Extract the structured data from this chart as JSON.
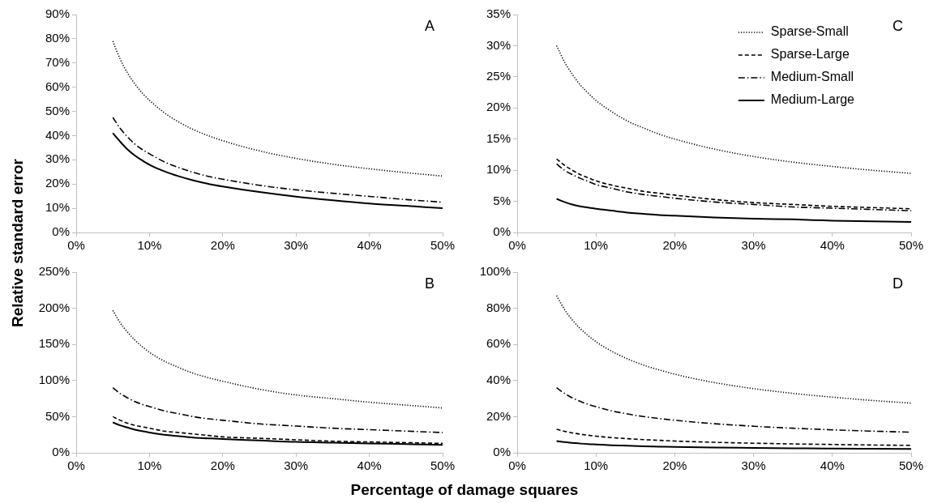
{
  "chart_data": [
    {
      "type": "line",
      "title": "A",
      "xlabel": "Percentage of damage squares",
      "ylabel": "Relative standard error",
      "x": [
        5,
        6,
        7,
        8,
        9,
        10,
        12,
        14,
        16,
        18,
        20,
        25,
        30,
        35,
        40,
        45,
        50
      ],
      "xlim": [
        0,
        50
      ],
      "xticks": [
        {
          "value": 0,
          "label": "0%"
        },
        {
          "value": 10,
          "label": "10%"
        },
        {
          "value": 20,
          "label": "20%"
        },
        {
          "value": 30,
          "label": "30%"
        },
        {
          "value": 40,
          "label": "40%"
        },
        {
          "value": 50,
          "label": "50%"
        }
      ],
      "ylim": [
        0,
        90
      ],
      "yticks": [
        {
          "value": 0,
          "label": "0%"
        },
        {
          "value": 10,
          "label": "10%"
        },
        {
          "value": 20,
          "label": "20%"
        },
        {
          "value": 30,
          "label": "30%"
        },
        {
          "value": 40,
          "label": "40%"
        },
        {
          "value": 50,
          "label": "50%"
        },
        {
          "value": 60,
          "label": "60%"
        },
        {
          "value": 70,
          "label": "70%"
        },
        {
          "value": 80,
          "label": "80%"
        },
        {
          "value": 90,
          "label": "90%"
        }
      ],
      "grid": false,
      "legend": false,
      "marker": "none",
      "series": [
        {
          "color": "#000000",
          "line_style": "dotted",
          "values": [
            79,
            71.6,
            65.9,
            61.4,
            57.6,
            54.6,
            49.5,
            45.6,
            42.5,
            40,
            37.9,
            33.7,
            30.6,
            28.2,
            26.3,
            24.7,
            23.3
          ]
        },
        {
          "color": "#000000",
          "line_style": "dashdot",
          "values": [
            47.5,
            43,
            39.5,
            36.5,
            34.3,
            32.5,
            29.2,
            26.8,
            24.8,
            23.2,
            22,
            19.5,
            17.6,
            16.2,
            14.9,
            13.6,
            12.5
          ]
        },
        {
          "color": "#000000",
          "line_style": "solid",
          "values": [
            41,
            37.5,
            34.3,
            31.8,
            29.8,
            28,
            25.3,
            23.2,
            21.5,
            20.1,
            19,
            16.7,
            14.8,
            13.3,
            12,
            11,
            10
          ]
        }
      ]
    },
    {
      "type": "line",
      "title": "C",
      "x": [
        5,
        6,
        7,
        8,
        9,
        10,
        12,
        14,
        16,
        18,
        20,
        25,
        30,
        35,
        40,
        45,
        50
      ],
      "xlim": [
        0,
        50
      ],
      "xticks": [
        {
          "value": 0,
          "label": "0%"
        },
        {
          "value": 10,
          "label": "10%"
        },
        {
          "value": 20,
          "label": "20%"
        },
        {
          "value": 30,
          "label": "30%"
        },
        {
          "value": 40,
          "label": "40%"
        },
        {
          "value": 50,
          "label": "50%"
        }
      ],
      "ylim": [
        0,
        35
      ],
      "yticks": [
        {
          "value": 0,
          "label": "0%"
        },
        {
          "value": 5,
          "label": "5%"
        },
        {
          "value": 10,
          "label": "10%"
        },
        {
          "value": 15,
          "label": "15%"
        },
        {
          "value": 20,
          "label": "20%"
        },
        {
          "value": 25,
          "label": "25%"
        },
        {
          "value": 30,
          "label": "30%"
        },
        {
          "value": 35,
          "label": "35%"
        }
      ],
      "grid": false,
      "legend": "top right",
      "marker": "none",
      "series": [
        {
          "name": "Sparse-Small",
          "color": "#000000",
          "line_style": "dotted",
          "values": [
            30,
            27.4,
            25.4,
            23.7,
            22.4,
            21.2,
            19.4,
            17.9,
            16.8,
            15.8,
            15,
            13.4,
            12.2,
            11.3,
            10.6,
            10,
            9.5
          ]
        },
        {
          "name": "Sparse-Large",
          "color": "#000000",
          "line_style": "dashed",
          "values": [
            11.8,
            10.8,
            10,
            9.3,
            8.8,
            8.3,
            7.6,
            7.1,
            6.6,
            6.3,
            6,
            5.3,
            4.8,
            4.5,
            4.2,
            4,
            3.8
          ]
        },
        {
          "name": "Medium-Small",
          "color": "#000000",
          "line_style": "dashdot",
          "values": [
            11,
            10,
            9.3,
            8.7,
            8.2,
            7.7,
            7.1,
            6.5,
            6.1,
            5.8,
            5.5,
            4.9,
            4.5,
            4.1,
            3.9,
            3.7,
            3.5
          ]
        },
        {
          "name": "Medium-Large",
          "color": "#000000",
          "line_style": "solid",
          "values": [
            5.4,
            4.9,
            4.5,
            4.2,
            4,
            3.8,
            3.5,
            3.2,
            3,
            2.8,
            2.7,
            2.4,
            2.2,
            2.1,
            1.9,
            1.8,
            1.7
          ]
        }
      ]
    },
    {
      "type": "line",
      "title": "B",
      "x": [
        5,
        6,
        7,
        8,
        9,
        10,
        12,
        14,
        16,
        18,
        20,
        25,
        30,
        35,
        40,
        45,
        50
      ],
      "xlim": [
        0,
        50
      ],
      "xticks": [
        {
          "value": 0,
          "label": "0%"
        },
        {
          "value": 10,
          "label": "10%"
        },
        {
          "value": 20,
          "label": "20%"
        },
        {
          "value": 30,
          "label": "30%"
        },
        {
          "value": 40,
          "label": "40%"
        },
        {
          "value": 50,
          "label": "50%"
        }
      ],
      "ylim": [
        0,
        250
      ],
      "yticks": [
        {
          "value": 0,
          "label": "0%"
        },
        {
          "value": 50,
          "label": "50%"
        },
        {
          "value": 100,
          "label": "100%"
        },
        {
          "value": 150,
          "label": "150%"
        },
        {
          "value": 200,
          "label": "200%"
        },
        {
          "value": 250,
          "label": "250%"
        }
      ],
      "grid": false,
      "legend": false,
      "marker": "none",
      "series": [
        {
          "color": "#000000",
          "line_style": "dotted",
          "values": [
            197,
            180,
            167,
            156,
            147,
            139,
            127,
            118,
            110,
            104,
            99,
            88,
            80,
            75,
            70,
            66,
            62
          ]
        },
        {
          "color": "#000000",
          "line_style": "dashed",
          "values": [
            50,
            45,
            41,
            38,
            36,
            34,
            30,
            28,
            26,
            24,
            22,
            20,
            18,
            16,
            15,
            14,
            13
          ]
        },
        {
          "color": "#000000",
          "line_style": "dashdot",
          "values": [
            90,
            82,
            76,
            71,
            67,
            64,
            58,
            54,
            50,
            47,
            45,
            40,
            37,
            34,
            32,
            30,
            28
          ]
        },
        {
          "color": "#000000",
          "line_style": "solid",
          "values": [
            42,
            38,
            35,
            32,
            30,
            28,
            25,
            23,
            21,
            20,
            19,
            17,
            15,
            14,
            13,
            12,
            11
          ]
        }
      ]
    },
    {
      "type": "line",
      "title": "D",
      "x": [
        5,
        6,
        7,
        8,
        9,
        10,
        12,
        14,
        16,
        18,
        20,
        25,
        30,
        35,
        40,
        45,
        50
      ],
      "xlim": [
        0,
        50
      ],
      "xticks": [
        {
          "value": 0,
          "label": "0%"
        },
        {
          "value": 10,
          "label": "10%"
        },
        {
          "value": 20,
          "label": "20%"
        },
        {
          "value": 30,
          "label": "30%"
        },
        {
          "value": 40,
          "label": "40%"
        },
        {
          "value": 50,
          "label": "50%"
        }
      ],
      "ylim": [
        0,
        100
      ],
      "yticks": [
        {
          "value": 0,
          "label": "0%"
        },
        {
          "value": 20,
          "label": "20%"
        },
        {
          "value": 40,
          "label": "40%"
        },
        {
          "value": 60,
          "label": "60%"
        },
        {
          "value": 80,
          "label": "80%"
        },
        {
          "value": 100,
          "label": "100%"
        }
      ],
      "grid": false,
      "legend": false,
      "marker": "none",
      "series": [
        {
          "color": "#000000",
          "line_style": "dotted",
          "values": [
            87,
            79.4,
            73.5,
            68.8,
            64.9,
            61.5,
            56.2,
            52,
            48.6,
            45.9,
            43.5,
            38.9,
            35.5,
            32.9,
            30.8,
            29,
            27.5
          ]
        },
        {
          "color": "#000000",
          "line_style": "dashed",
          "values": [
            13,
            11.9,
            11,
            10.3,
            9.7,
            9.2,
            8.4,
            7.8,
            7.3,
            6.9,
            6.5,
            5.8,
            5.3,
            4.9,
            4.6,
            4.3,
            4.1
          ]
        },
        {
          "color": "#000000",
          "line_style": "dashdot",
          "values": [
            36,
            32.9,
            30.4,
            28.5,
            26.8,
            25.5,
            23.2,
            21.5,
            20.1,
            19,
            18,
            16.1,
            14.7,
            13.6,
            12.7,
            12,
            11.4
          ]
        },
        {
          "color": "#000000",
          "line_style": "solid",
          "values": [
            6.5,
            5.9,
            5.5,
            5.1,
            4.8,
            4.6,
            4.2,
            3.9,
            3.6,
            3.4,
            3.2,
            2.9,
            2.7,
            2.5,
            2.3,
            2.2,
            2.1
          ]
        }
      ]
    }
  ]
}
